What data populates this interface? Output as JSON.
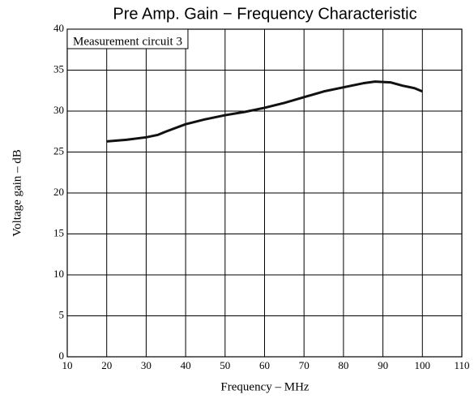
{
  "chart_data": {
    "type": "line",
    "title": "Pre Amp. Gain − Frequency Characteristic",
    "annotation": "Measurement circuit 3",
    "xlabel": "Frequency – MHz",
    "ylabel": "Voltage gain – dB",
    "x": [
      20,
      25,
      30,
      33,
      35,
      40,
      45,
      50,
      55,
      60,
      65,
      70,
      75,
      80,
      85,
      88,
      92,
      95,
      98,
      100
    ],
    "series": [
      {
        "color": "#111111",
        "values": [
          26.3,
          26.5,
          26.8,
          27.1,
          27.5,
          28.4,
          29.0,
          29.5,
          29.9,
          30.4,
          31.0,
          31.7,
          32.4,
          32.9,
          33.4,
          33.6,
          33.5,
          33.1,
          32.8,
          32.4
        ]
      }
    ],
    "xlim": [
      10,
      110
    ],
    "xticks": [
      10,
      20,
      30,
      40,
      50,
      60,
      70,
      80,
      90,
      100,
      110
    ],
    "ylim": [
      0,
      40
    ],
    "yticks": [
      0,
      5,
      10,
      15,
      20,
      25,
      30,
      35,
      40
    ],
    "grid": true
  }
}
